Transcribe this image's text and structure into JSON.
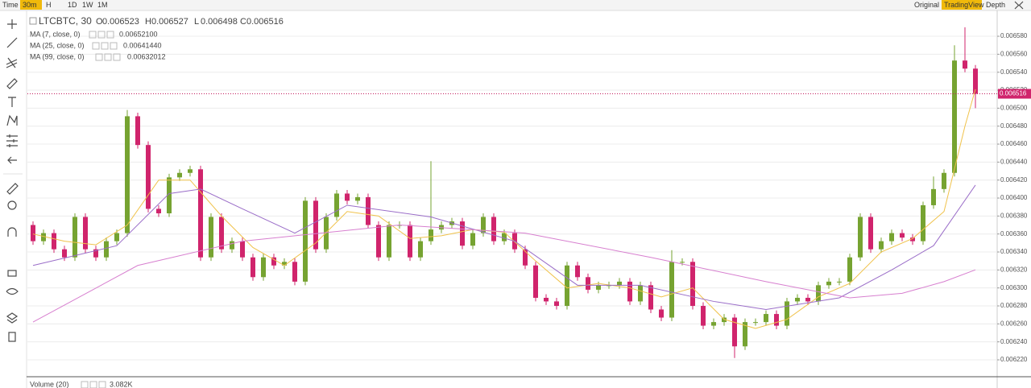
{
  "toolbar": {
    "left": [
      "Time",
      "30m",
      "H",
      "1D",
      "1W",
      "1M"
    ],
    "right": [
      "Original",
      "TradingView",
      "Depth"
    ]
  },
  "chart_data": {
    "type": "candlestick",
    "title": "LTCBTC, 30",
    "ohlc_legend": [
      {
        "label": "O",
        "value": 0.006523
      },
      {
        "label": "H",
        "value": 0.006527
      },
      {
        "label": "L",
        "value": 0.006498
      },
      {
        "label": "C",
        "value": 0.006516
      }
    ],
    "up_color": "#76a331",
    "down_color": "#d0246c",
    "ylim": [
      0.0062012,
      0.0066087
    ],
    "yticks": [
      {
        "value": 0.00622,
        "label": "0.006220"
      },
      {
        "value": 0.00624,
        "label": "0.006240"
      },
      {
        "value": 0.00626,
        "label": "0.006260"
      },
      {
        "value": 0.00628,
        "label": "0.006280"
      },
      {
        "value": 0.0063,
        "label": "0.006300"
      },
      {
        "value": 0.00632,
        "label": "0.006320"
      },
      {
        "value": 0.00634,
        "label": "0.006340"
      },
      {
        "value": 0.00636,
        "label": "0.006360"
      },
      {
        "value": 0.00638,
        "label": "0.006380"
      },
      {
        "value": 0.0064,
        "label": "0.006400"
      },
      {
        "value": 0.00642,
        "label": "0.006420"
      },
      {
        "value": 0.00644,
        "label": "0.006440"
      },
      {
        "value": 0.00646,
        "label": "0.006460"
      },
      {
        "value": 0.00648,
        "label": "0.006480"
      },
      {
        "value": 0.0065,
        "label": "0.006500"
      },
      {
        "value": 0.00652,
        "label": "0.006520"
      },
      {
        "value": 0.00654,
        "label": "0.006540"
      },
      {
        "value": 0.00656,
        "label": "0.006560"
      },
      {
        "value": 0.00658,
        "label": "0.006580"
      }
    ],
    "grid": true,
    "last_price": 0.006516,
    "open": [
      0.00637,
      0.006352,
      0.006361,
      0.006343,
      0.006334,
      0.006379,
      0.006343,
      0.006334,
      0.006352,
      0.006361,
      0.006491,
      0.006459,
      0.006388,
      0.006383,
      0.006423,
      0.006428,
      0.006432,
      0.006334,
      0.006379,
      0.006343,
      0.006352,
      0.006334,
      0.006312,
      0.006334,
      0.006325,
      0.006329,
      0.006307,
      0.006397,
      0.006343,
      0.006379,
      0.006405,
      0.006397,
      0.006401,
      0.00637,
      0.006334,
      0.00637,
      0.00637,
      0.006334,
      0.006352,
      0.006365,
      0.00637,
      0.006374,
      0.006347,
      0.006361,
      0.006379,
      0.006352,
      0.006361,
      0.006343,
      0.006325,
      0.006289,
      0.006285,
      0.00628,
      0.006325,
      0.006312,
      0.006298,
      0.006303,
      0.006303,
      0.006307,
      0.006285,
      0.006303,
      0.006276,
      0.006267,
      0.006329,
      0.006329,
      0.00628,
      0.006258,
      0.006262,
      0.006267,
      0.006235,
      0.006262,
      0.006262,
      0.006271,
      0.006258,
      0.006285,
      0.006289,
      0.006285,
      0.006303,
      0.006307,
      0.006307,
      0.006334,
      0.006379,
      0.006343,
      0.006352,
      0.006361,
      0.006356,
      0.006352,
      0.006392,
      0.00641,
      0.006428,
      0.006553,
      0.006544
    ],
    "high": [
      0.006374,
      0.006365,
      0.006365,
      0.006347,
      0.006383,
      0.006383,
      0.006347,
      0.006356,
      0.006365,
      0.006498,
      0.006495,
      0.006463,
      0.006392,
      0.006427,
      0.006432,
      0.006436,
      0.006436,
      0.006383,
      0.006383,
      0.006356,
      0.006356,
      0.006338,
      0.006338,
      0.006338,
      0.006333,
      0.006333,
      0.006401,
      0.006401,
      0.006383,
      0.006409,
      0.006409,
      0.006405,
      0.006405,
      0.006374,
      0.006374,
      0.006374,
      0.006374,
      0.006356,
      0.006441,
      0.006374,
      0.006378,
      0.006378,
      0.006365,
      0.006383,
      0.006383,
      0.006365,
      0.006365,
      0.006347,
      0.006329,
      0.006293,
      0.006289,
      0.006329,
      0.006329,
      0.006316,
      0.006307,
      0.006307,
      0.006311,
      0.006311,
      0.006307,
      0.006307,
      0.00628,
      0.006342,
      0.006333,
      0.006333,
      0.006284,
      0.006266,
      0.006271,
      0.006271,
      0.006266,
      0.006266,
      0.006275,
      0.006275,
      0.006289,
      0.006293,
      0.006293,
      0.006307,
      0.006311,
      0.006311,
      0.006338,
      0.006383,
      0.006383,
      0.006356,
      0.006365,
      0.006365,
      0.00636,
      0.006396,
      0.006424,
      0.006432,
      0.00657,
      0.00659,
      0.006548
    ],
    "low": [
      0.006348,
      0.006348,
      0.006339,
      0.00633,
      0.00633,
      0.006339,
      0.00633,
      0.00633,
      0.006348,
      0.006357,
      0.006455,
      0.006384,
      0.006379,
      0.006379,
      0.006419,
      0.006424,
      0.00633,
      0.00633,
      0.006339,
      0.006339,
      0.00633,
      0.006308,
      0.006308,
      0.006321,
      0.006321,
      0.006303,
      0.006303,
      0.006339,
      0.006339,
      0.006375,
      0.006393,
      0.006393,
      0.006366,
      0.00633,
      0.00633,
      0.006366,
      0.00633,
      0.00633,
      0.006348,
      0.006361,
      0.006366,
      0.006343,
      0.006343,
      0.006357,
      0.006348,
      0.006348,
      0.006339,
      0.006321,
      0.006285,
      0.006281,
      0.006276,
      0.006276,
      0.006308,
      0.006294,
      0.006294,
      0.006299,
      0.006299,
      0.006281,
      0.006281,
      0.006272,
      0.006263,
      0.006263,
      0.006325,
      0.006276,
      0.006254,
      0.006254,
      0.006258,
      0.006222,
      0.006231,
      0.006258,
      0.006258,
      0.006254,
      0.006254,
      0.006281,
      0.006281,
      0.006281,
      0.006299,
      0.006303,
      0.006303,
      0.00633,
      0.006339,
      0.006339,
      0.006348,
      0.006352,
      0.006348,
      0.006348,
      0.006388,
      0.006406,
      0.006424,
      0.00654,
      0.0065
    ],
    "close": [
      0.006352,
      0.006361,
      0.006343,
      0.006334,
      0.006379,
      0.006343,
      0.006334,
      0.006352,
      0.006361,
      0.006491,
      0.006459,
      0.006388,
      0.006383,
      0.006423,
      0.006428,
      0.006432,
      0.006334,
      0.006379,
      0.006343,
      0.006352,
      0.006334,
      0.006312,
      0.006334,
      0.006325,
      0.006329,
      0.006307,
      0.006397,
      0.006343,
      0.006379,
      0.006405,
      0.006397,
      0.006401,
      0.00637,
      0.006334,
      0.00637,
      0.00637,
      0.006334,
      0.006352,
      0.006365,
      0.00637,
      0.006374,
      0.006347,
      0.006361,
      0.006379,
      0.006352,
      0.006361,
      0.006343,
      0.006325,
      0.006289,
      0.006285,
      0.00628,
      0.006325,
      0.006312,
      0.006298,
      0.006303,
      0.006303,
      0.006307,
      0.006285,
      0.006303,
      0.006276,
      0.006267,
      0.006329,
      0.006329,
      0.00628,
      0.006258,
      0.006262,
      0.006267,
      0.006235,
      0.006262,
      0.006262,
      0.006271,
      0.006258,
      0.006285,
      0.006289,
      0.006285,
      0.006303,
      0.006307,
      0.006307,
      0.006334,
      0.006379,
      0.006343,
      0.006352,
      0.006361,
      0.006356,
      0.006352,
      0.006392,
      0.00641,
      0.006428,
      0.006553,
      0.006544,
      0.006516
    ],
    "series": [
      {
        "name": "MA (7, close, 0)",
        "color": "#f0c24a",
        "legend_value": "0.00652100",
        "x": [
          0,
          3,
          6,
          9,
          12,
          15,
          18,
          21,
          24,
          27,
          30,
          33,
          36,
          39,
          42,
          45,
          48,
          51,
          54,
          57,
          60,
          63,
          66,
          69,
          72,
          75,
          78,
          81,
          84,
          87,
          89,
          90
        ],
        "values": [
          0.00636,
          0.006352,
          0.006348,
          0.00637,
          0.00642,
          0.00642,
          0.00638,
          0.006345,
          0.006325,
          0.00635,
          0.006385,
          0.00638,
          0.006355,
          0.006358,
          0.006365,
          0.006362,
          0.00633,
          0.0063,
          0.006305,
          0.0063,
          0.00629,
          0.0063,
          0.006265,
          0.006255,
          0.006265,
          0.00629,
          0.006305,
          0.00634,
          0.006355,
          0.006385,
          0.00648,
          0.006521
        ]
      },
      {
        "name": "MA (25, close, 0)",
        "color": "#9a6dc8",
        "legend_value": "0.00641440",
        "x": [
          0,
          8,
          13,
          16,
          20,
          25,
          30,
          38,
          46,
          52,
          58,
          65,
          70,
          77,
          82,
          86,
          90
        ],
        "values": [
          0.006325,
          0.006347,
          0.006405,
          0.00641,
          0.006388,
          0.006361,
          0.006392,
          0.006379,
          0.006352,
          0.006303,
          0.006303,
          0.006285,
          0.006276,
          0.006289,
          0.00632,
          0.006347,
          0.0064144
        ]
      },
      {
        "name": "MA (99, close, 0)",
        "color": "#d77fcf",
        "legend_value": "0.00632012",
        "x": [
          0,
          10,
          20,
          35,
          47,
          59,
          70,
          78,
          83,
          87,
          90
        ],
        "values": [
          0.006262,
          0.006325,
          0.006352,
          0.00637,
          0.006361,
          0.006334,
          0.006307,
          0.006289,
          0.006294,
          0.006307,
          0.00632012
        ]
      }
    ],
    "volume": {
      "name": "Volume (20)",
      "label": "3.082K"
    }
  }
}
